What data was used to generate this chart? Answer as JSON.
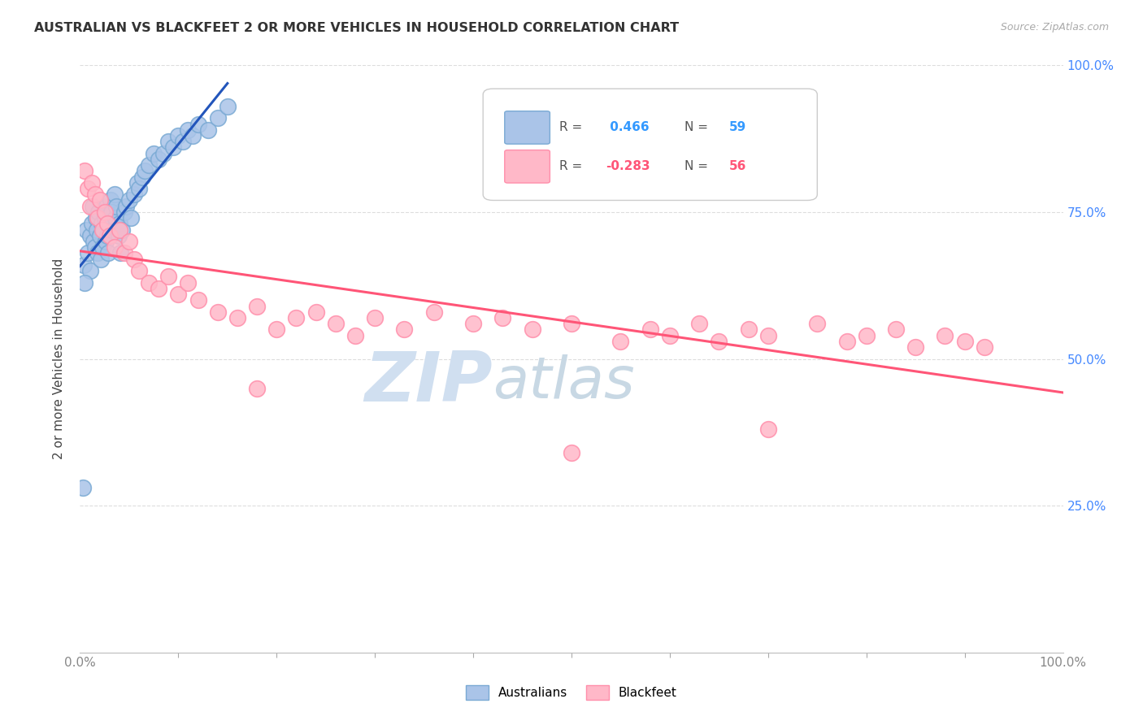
{
  "title": "AUSTRALIAN VS BLACKFEET 2 OR MORE VEHICLES IN HOUSEHOLD CORRELATION CHART",
  "source": "Source: ZipAtlas.com",
  "ylabel": "2 or more Vehicles in Household",
  "legend_australian": "Australians",
  "legend_blackfeet": "Blackfeet",
  "r_australian": 0.466,
  "n_australian": 59,
  "r_blackfeet": -0.283,
  "n_blackfeet": 56,
  "background_color": "#ffffff",
  "blue_dot_face": "#aac4e8",
  "blue_dot_edge": "#7aaad4",
  "pink_dot_face": "#ffb8c8",
  "pink_dot_edge": "#ff8fab",
  "blue_line_color": "#2255bb",
  "pink_line_color": "#ff5577",
  "right_tick_color": "#4488ff",
  "watermark_zip": "ZIP",
  "watermark_atlas": "atlas",
  "watermark_color": "#d0dff0",
  "xlim": [
    0,
    100
  ],
  "ylim": [
    0,
    100
  ],
  "yticks": [
    25,
    50,
    75,
    100
  ],
  "ytick_labels": [
    "25.0%",
    "50.0%",
    "75.0%",
    "100.0%"
  ],
  "aus_x": [
    0.4,
    0.6,
    0.8,
    1.0,
    1.0,
    1.2,
    1.3,
    1.4,
    1.5,
    1.6,
    1.7,
    1.8,
    1.9,
    2.0,
    2.1,
    2.2,
    2.3,
    2.4,
    2.5,
    2.6,
    2.7,
    2.8,
    2.9,
    3.0,
    3.1,
    3.2,
    3.3,
    3.5,
    3.6,
    3.7,
    3.9,
    4.0,
    4.1,
    4.3,
    4.5,
    4.7,
    5.0,
    5.2,
    5.5,
    5.8,
    6.0,
    6.3,
    6.6,
    7.0,
    7.5,
    8.0,
    8.5,
    9.0,
    9.5,
    10.0,
    10.5,
    11.0,
    11.5,
    12.0,
    13.0,
    14.0,
    15.0,
    0.5,
    0.3
  ],
  "aus_y": [
    66.0,
    72.0,
    68.0,
    71.0,
    65.0,
    73.0,
    76.0,
    70.0,
    69.0,
    74.0,
    72.0,
    68.0,
    75.0,
    71.0,
    67.0,
    73.0,
    69.0,
    72.0,
    74.0,
    70.0,
    76.0,
    71.0,
    68.0,
    73.0,
    77.0,
    75.0,
    72.0,
    78.0,
    74.0,
    76.0,
    71.0,
    73.0,
    68.0,
    72.0,
    75.0,
    76.0,
    77.0,
    74.0,
    78.0,
    80.0,
    79.0,
    81.0,
    82.0,
    83.0,
    85.0,
    84.0,
    85.0,
    87.0,
    86.0,
    88.0,
    87.0,
    89.0,
    88.0,
    90.0,
    89.0,
    91.0,
    93.0,
    63.0,
    28.0
  ],
  "blk_x": [
    0.5,
    0.8,
    1.0,
    1.2,
    1.5,
    1.8,
    2.0,
    2.3,
    2.5,
    2.8,
    3.0,
    3.5,
    4.0,
    4.5,
    5.0,
    5.5,
    6.0,
    7.0,
    8.0,
    9.0,
    10.0,
    11.0,
    12.0,
    14.0,
    16.0,
    18.0,
    20.0,
    22.0,
    24.0,
    26.0,
    28.0,
    30.0,
    33.0,
    36.0,
    40.0,
    43.0,
    46.0,
    50.0,
    55.0,
    58.0,
    60.0,
    63.0,
    65.0,
    68.0,
    70.0,
    75.0,
    78.0,
    80.0,
    83.0,
    85.0,
    88.0,
    90.0,
    92.0,
    18.0,
    50.0,
    70.0
  ],
  "blk_y": [
    82.0,
    79.0,
    76.0,
    80.0,
    78.0,
    74.0,
    77.0,
    72.0,
    75.0,
    73.0,
    71.0,
    69.0,
    72.0,
    68.0,
    70.0,
    67.0,
    65.0,
    63.0,
    62.0,
    64.0,
    61.0,
    63.0,
    60.0,
    58.0,
    57.0,
    59.0,
    55.0,
    57.0,
    58.0,
    56.0,
    54.0,
    57.0,
    55.0,
    58.0,
    56.0,
    57.0,
    55.0,
    56.0,
    53.0,
    55.0,
    54.0,
    56.0,
    53.0,
    55.0,
    54.0,
    56.0,
    53.0,
    54.0,
    55.0,
    52.0,
    54.0,
    53.0,
    52.0,
    45.0,
    34.0,
    38.0
  ]
}
